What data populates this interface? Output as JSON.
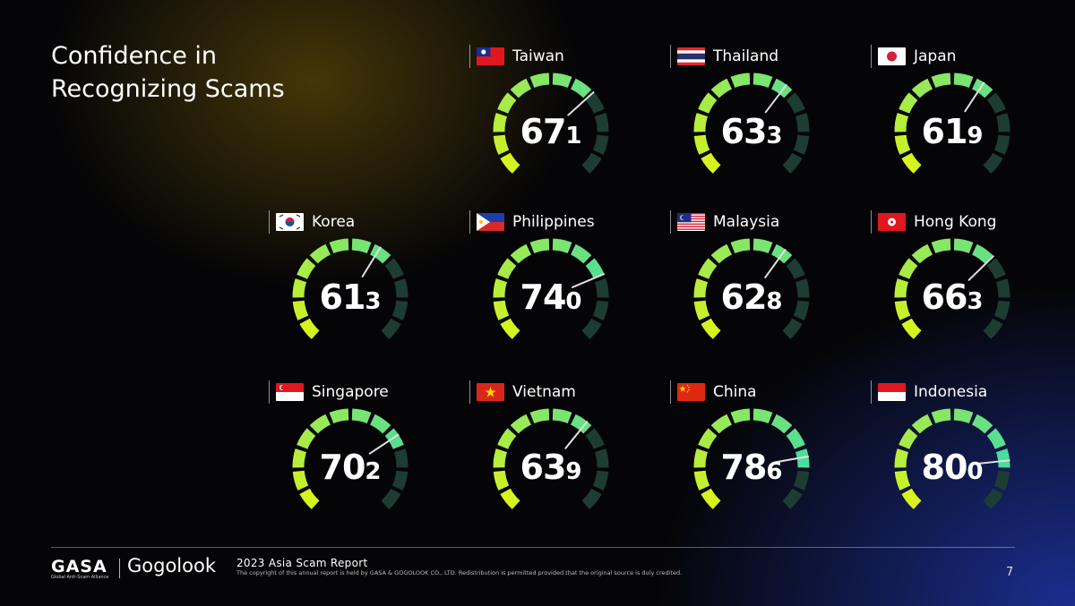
{
  "title": [
    "Confidence in",
    "Recognizing Scams"
  ],
  "chart_data": {
    "type": "gauge",
    "title": "Confidence in Recognizing Scams",
    "range": [
      0,
      100
    ],
    "categories": [
      "Taiwan",
      "Thailand",
      "Japan",
      "Korea",
      "Philippines",
      "Malaysia",
      "Hong Kong",
      "Singapore",
      "Vietnam",
      "China",
      "Indonesia"
    ],
    "values": [
      67.1,
      63.3,
      61.9,
      61.3,
      74.0,
      62.8,
      66.3,
      70.2,
      63.9,
      78.6,
      80.0
    ],
    "flags": [
      "taiwan-flag-icon",
      "thailand-flag-icon",
      "japan-flag-icon",
      "korea-flag-icon",
      "philippines-flag-icon",
      "malaysia-flag-icon",
      "hong-kong-flag-icon",
      "singapore-flag-icon",
      "vietnam-flag-icon",
      "china-flag-icon",
      "indonesia-flag-icon"
    ]
  },
  "colors": {
    "gauge_start": "#d6f21f",
    "gauge_end": "#2bd8b8",
    "gauge_inactive": "#1d3d32",
    "needle": "#e0e0e0"
  },
  "footer": {
    "brand1": "GASA",
    "brand1_sub": "Global Anti-Scam Alliance",
    "brand2": "Gogolook",
    "report": "2023 Asia Scam Report",
    "copyright": "The copyright of this annual report is held by GASA & GOGOLOOK CO., LTD. Redistribution is permitted provided that the original source is duly credited.",
    "page": "7"
  }
}
